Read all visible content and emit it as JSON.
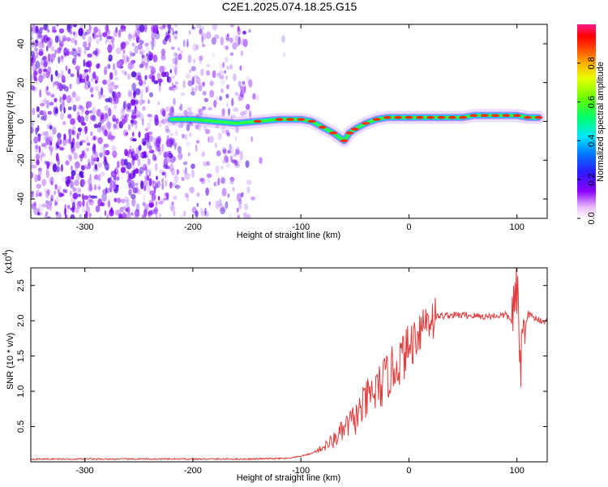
{
  "title": "C2E1.2025.074.18.25.G15",
  "chart_data": [
    {
      "type": "heatmap",
      "xlabel": "Height of straight line (km)",
      "ylabel": "Frequency (Hz)",
      "xlim": [
        -350,
        128
      ],
      "ylim": [
        -50,
        50
      ],
      "xticks": [
        -300,
        -200,
        -100,
        0,
        100
      ],
      "yticks": [
        -40,
        -20,
        0,
        20,
        40
      ],
      "colorbar": {
        "label": "Normalized spectral amplitude",
        "range": [
          0,
          1
        ],
        "ticks": [
          "0.0",
          "0.2",
          "0.4",
          "0.6",
          "0.8"
        ]
      },
      "signal_trace": {
        "x": [
          -220,
          -200,
          -180,
          -160,
          -140,
          -120,
          -110,
          -100,
          -90,
          -80,
          -70,
          -60,
          -55,
          -50,
          -40,
          -30,
          -20,
          -10,
          0,
          10,
          20,
          30,
          40,
          50,
          60,
          70,
          80,
          90,
          100,
          110,
          120
        ],
        "y": [
          1,
          1,
          0,
          -1,
          0,
          1,
          1,
          1,
          0,
          -3,
          -6,
          -10,
          -6,
          -4,
          -1,
          1,
          2,
          2,
          2,
          2,
          2,
          2,
          2,
          2,
          3,
          3,
          3,
          3,
          3,
          2,
          2
        ]
      }
    },
    {
      "type": "line",
      "xlabel": "Height of straight line (km)",
      "ylabel": "SNR (10 * v/v)",
      "scale_label": "(x10",
      "scale_exp": "4",
      "xlim": [
        -350,
        128
      ],
      "ylim": [
        0,
        2.75
      ],
      "xticks": [
        -300,
        -200,
        -100,
        0,
        100
      ],
      "yticks": [
        0.5,
        1.0,
        1.5,
        2.0,
        2.5
      ],
      "color": "#e03c3c",
      "series": [
        {
          "x": [
            -350,
            -300,
            -250,
            -200,
            -150,
            -110,
            -100,
            -90,
            -80,
            -70,
            -65,
            -60,
            -55,
            -50,
            -45,
            -40,
            -35,
            -30,
            -25,
            -20,
            -15,
            -10,
            -5,
            0,
            5,
            10,
            15,
            20,
            25,
            30,
            40,
            50,
            60,
            70,
            80,
            90,
            95,
            100,
            103,
            106,
            110,
            115,
            120,
            128
          ],
          "y": [
            0.04,
            0.04,
            0.04,
            0.04,
            0.04,
            0.05,
            0.08,
            0.12,
            0.2,
            0.3,
            0.38,
            0.45,
            0.55,
            0.6,
            0.72,
            0.85,
            0.95,
            1.0,
            1.1,
            1.2,
            1.3,
            1.4,
            1.5,
            1.62,
            1.75,
            1.9,
            2.0,
            2.05,
            2.05,
            2.07,
            2.08,
            2.08,
            2.07,
            2.06,
            2.07,
            2.08,
            2.0,
            2.4,
            1.4,
            1.8,
            2.1,
            2.05,
            2.02,
            1.98
          ]
        }
      ]
    }
  ]
}
